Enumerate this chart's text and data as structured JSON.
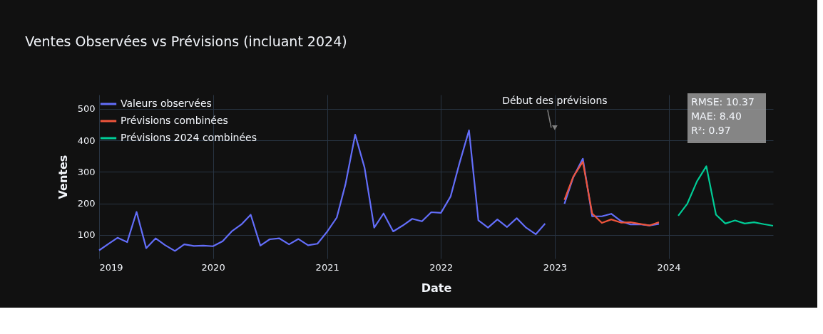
{
  "chart_data": {
    "type": "line",
    "title": "Ventes Observées vs Prévisions (incluant 2024)",
    "xlabel": "Date",
    "ylabel": "Ventes",
    "xlim": [
      "2019-01",
      "2024-12"
    ],
    "xticks": [
      {
        "value": "2019-01-01",
        "label": "2019"
      },
      {
        "value": "2020-01-01",
        "label": "2020"
      },
      {
        "value": "2021-01-01",
        "label": "2021"
      },
      {
        "value": "2022-01-01",
        "label": "2022"
      },
      {
        "value": "2023-01-01",
        "label": "2023"
      },
      {
        "value": "2024-01-01",
        "label": "2024"
      }
    ],
    "ylim": [
      25,
      545
    ],
    "yticks": [
      100,
      200,
      300,
      400,
      500
    ],
    "grid": true,
    "legend": "top left",
    "marker": "none",
    "line_style": "solid",
    "series": [
      {
        "name": "Valeurs observées",
        "color": "#636efa",
        "x": [
          "2019-01",
          "2019-02",
          "2019-03",
          "2019-04",
          "2019-05",
          "2019-06",
          "2019-07",
          "2019-08",
          "2019-09",
          "2019-10",
          "2019-11",
          "2019-12",
          "2020-01",
          "2020-02",
          "2020-03",
          "2020-04",
          "2020-05",
          "2020-06",
          "2020-07",
          "2020-08",
          "2020-09",
          "2020-10",
          "2020-11",
          "2020-12",
          "2021-01",
          "2021-02",
          "2021-03",
          "2021-04",
          "2021-05",
          "2021-06",
          "2021-07",
          "2021-08",
          "2021-09",
          "2021-10",
          "2021-11",
          "2021-12",
          "2022-01",
          "2022-02",
          "2022-03",
          "2022-04",
          "2022-05",
          "2022-06",
          "2022-07",
          "2022-08",
          "2022-09",
          "2022-10",
          "2022-11",
          "2022-12",
          "2023-01",
          "2023-02",
          "2023-03",
          "2023-04",
          "2023-05",
          "2023-06",
          "2023-07",
          "2023-08",
          "2023-09",
          "2023-10",
          "2023-11",
          "2023-12"
        ],
        "values": [
          51,
          72,
          91,
          77,
          173,
          58,
          89,
          67,
          49,
          70,
          65,
          66,
          64,
          80,
          111,
          133,
          164,
          66,
          86,
          89,
          70,
          87,
          67,
          72,
          110,
          155,
          261,
          418,
          314,
          123,
          168,
          111,
          130,
          151,
          143,
          172,
          170,
          222,
          326,
          432,
          146,
          123,
          149,
          125,
          153,
          123,
          102,
          136,
          null,
          199,
          282,
          342,
          159,
          159,
          167,
          144,
          133,
          134,
          130,
          135
        ]
      },
      {
        "name": "Prévisions combinées",
        "color": "#ef553b",
        "x": [
          "2023-02",
          "2023-03",
          "2023-04",
          "2023-05",
          "2023-06",
          "2023-07",
          "2023-08",
          "2023-09",
          "2023-10",
          "2023-11",
          "2023-12"
        ],
        "values": [
          211,
          284,
          332,
          168,
          138,
          149,
          139,
          140,
          135,
          130,
          140
        ]
      },
      {
        "name": "Prévisions 2024 combinées",
        "color": "#00cc96",
        "x": [
          "2024-02",
          "2024-03",
          "2024-04",
          "2024-05",
          "2024-06",
          "2024-07",
          "2024-08",
          "2024-09",
          "2024-10",
          "2024-11",
          "2024-12"
        ],
        "values": [
          161,
          199,
          270,
          318,
          164,
          136,
          146,
          136,
          140,
          134,
          129
        ]
      }
    ],
    "annotations": [
      {
        "text": "Début des prévisions",
        "x": "2023-01",
        "y": 440
      },
      "RMSE: 10.37",
      "MAE: 8.40",
      "R²: 0.97"
    ]
  }
}
